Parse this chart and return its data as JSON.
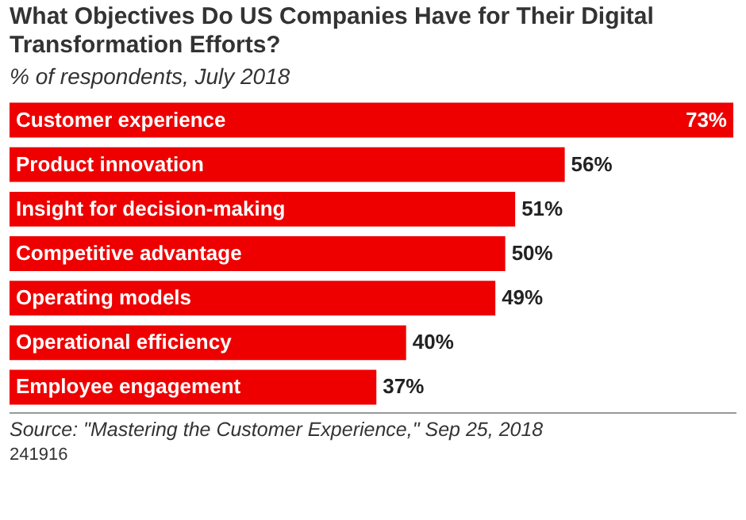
{
  "chart_data": {
    "type": "bar",
    "orientation": "horizontal",
    "title": "What Objectives Do US Companies Have for Their Digital Transformation Efforts?",
    "subtitle": "% of respondents, July 2018",
    "categories": [
      "Customer experience",
      "Product innovation",
      "Insight for decision-making",
      "Competitive advantage",
      "Operating models",
      "Operational efficiency",
      "Employee engagement"
    ],
    "values": [
      73,
      56,
      51,
      50,
      49,
      40,
      37
    ],
    "value_labels": [
      "73%",
      "56%",
      "51%",
      "50%",
      "49%",
      "40%",
      "37%"
    ],
    "color": "#ee0000",
    "annotations": [
      "Source: \"Mastering the Customer Experience,\" Sep 25, 2018",
      "241916"
    ]
  }
}
